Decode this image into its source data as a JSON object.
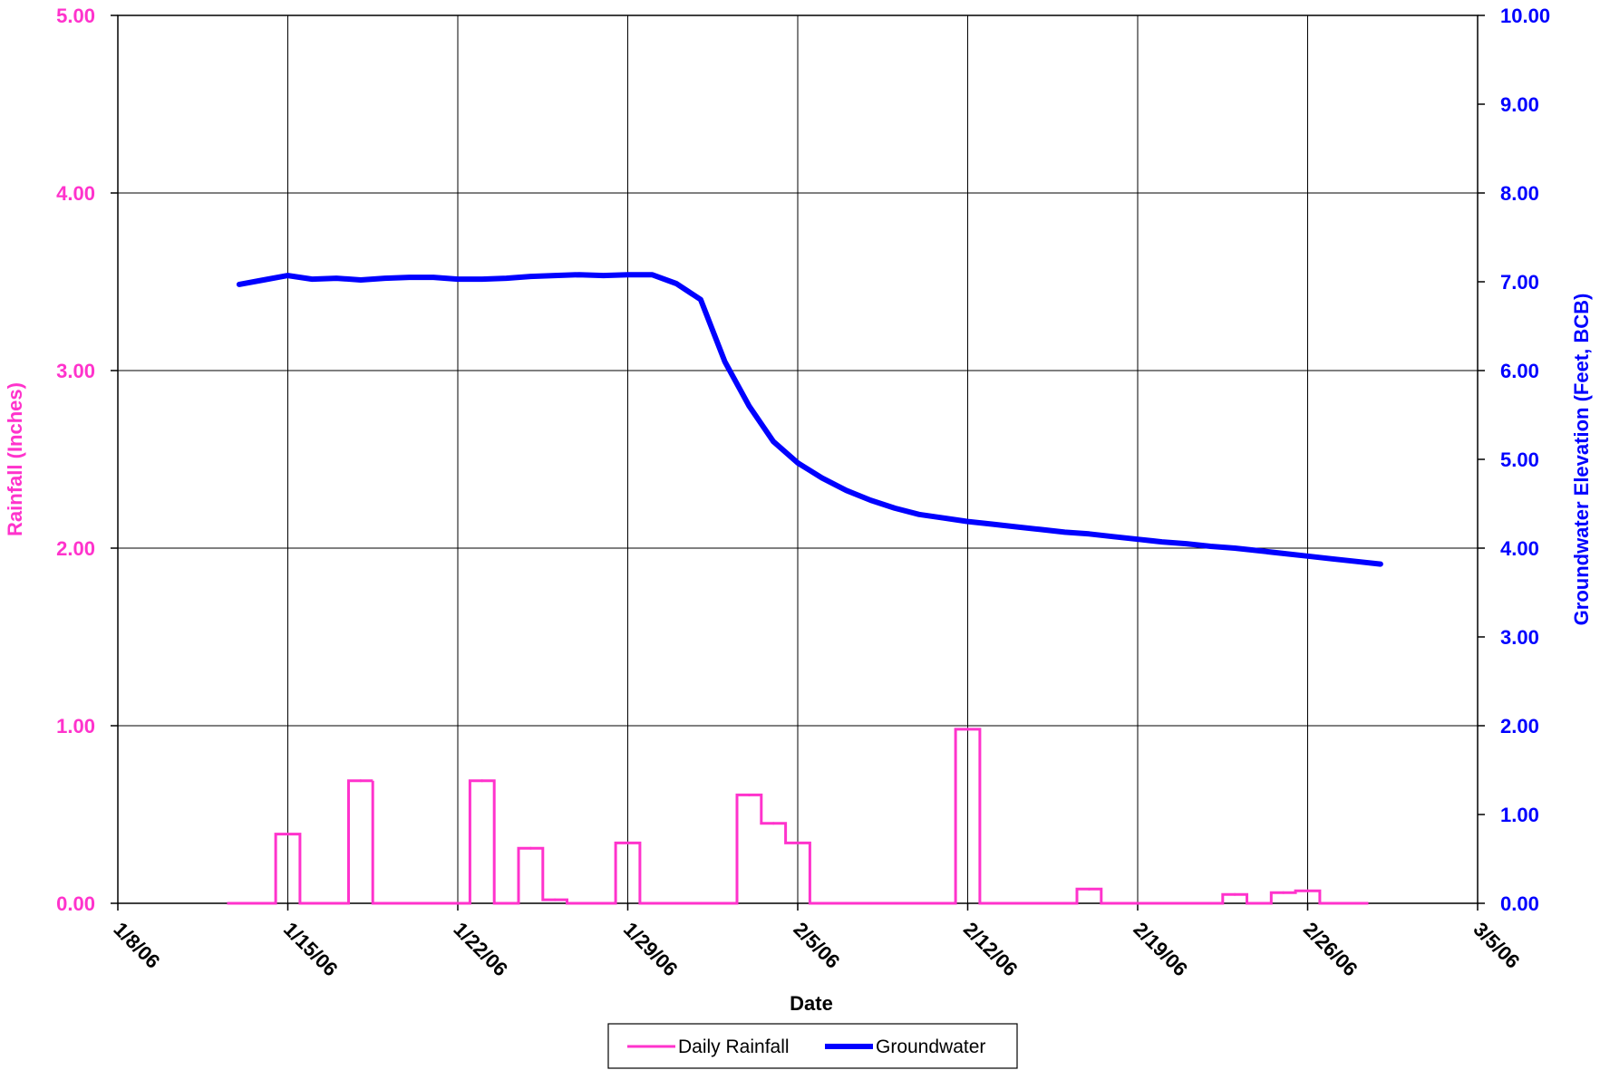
{
  "chart_data": {
    "type": "line",
    "xlabel": "Date",
    "ylabel_left": "Rainfall (Inches)",
    "ylabel_right": "Groundwater Elevation (Feet, BCB)",
    "x_ticks": [
      "1/8/06",
      "1/15/06",
      "1/22/06",
      "1/29/06",
      "2/5/06",
      "2/12/06",
      "2/19/06",
      "2/26/06",
      "3/5/06"
    ],
    "xlim": [
      "1/8/06",
      "3/5/06"
    ],
    "y_left_ticks": [
      "0.00",
      "1.00",
      "2.00",
      "3.00",
      "4.00",
      "5.00"
    ],
    "y_left_range": [
      0,
      5
    ],
    "y_right_ticks": [
      "0.00",
      "1.00",
      "2.00",
      "3.00",
      "4.00",
      "5.00",
      "6.00",
      "7.00",
      "8.00",
      "9.00",
      "10.00"
    ],
    "y_right_range": [
      0,
      10
    ],
    "grid": true,
    "legend_position": "bottom-center",
    "series": [
      {
        "name": "Daily Rainfall",
        "axis": "left",
        "color": "#ff33cc",
        "x": [
          "1/13/06",
          "1/14/06",
          "1/15/06",
          "1/16/06",
          "1/17/06",
          "1/18/06",
          "1/19/06",
          "1/20/06",
          "1/21/06",
          "1/22/06",
          "1/23/06",
          "1/24/06",
          "1/25/06",
          "1/26/06",
          "1/27/06",
          "1/28/06",
          "1/29/06",
          "1/30/06",
          "1/31/06",
          "2/1/06",
          "2/2/06",
          "2/3/06",
          "2/4/06",
          "2/5/06",
          "2/6/06",
          "2/7/06",
          "2/8/06",
          "2/9/06",
          "2/10/06",
          "2/11/06",
          "2/12/06",
          "2/13/06",
          "2/14/06",
          "2/15/06",
          "2/16/06",
          "2/17/06",
          "2/18/06",
          "2/19/06",
          "2/20/06",
          "2/21/06",
          "2/22/06",
          "2/23/06",
          "2/24/06",
          "2/25/06",
          "2/26/06",
          "2/27/06",
          "2/28/06"
        ],
        "y": [
          0,
          0,
          0.39,
          0,
          0,
          0.69,
          0,
          0,
          0,
          0,
          0.69,
          0,
          0.31,
          0.02,
          0,
          0,
          0.34,
          0,
          0,
          0,
          0,
          0.61,
          0.45,
          0.34,
          0,
          0,
          0,
          0,
          0,
          0,
          0.98,
          0,
          0,
          0,
          0,
          0.08,
          0,
          0,
          0,
          0,
          0,
          0.05,
          0,
          0.06,
          0.07,
          0,
          0
        ]
      },
      {
        "name": "Groundwater",
        "axis": "right",
        "color": "#0000ff",
        "x": [
          "1/13/06",
          "1/14/06",
          "1/15/06",
          "1/16/06",
          "1/17/06",
          "1/18/06",
          "1/19/06",
          "1/20/06",
          "1/21/06",
          "1/22/06",
          "1/23/06",
          "1/24/06",
          "1/25/06",
          "1/26/06",
          "1/27/06",
          "1/28/06",
          "1/29/06",
          "1/30/06",
          "1/31/06",
          "2/1/06",
          "2/2/06",
          "2/3/06",
          "2/4/06",
          "2/5/06",
          "2/6/06",
          "2/7/06",
          "2/8/06",
          "2/9/06",
          "2/10/06",
          "2/11/06",
          "2/12/06",
          "2/13/06",
          "2/14/06",
          "2/15/06",
          "2/16/06",
          "2/17/06",
          "2/18/06",
          "2/19/06",
          "2/20/06",
          "2/21/06",
          "2/22/06",
          "2/23/06",
          "2/24/06",
          "2/25/06",
          "2/26/06",
          "2/27/06",
          "2/28/06",
          "3/1/06"
        ],
        "y": [
          6.97,
          7.02,
          7.07,
          7.03,
          7.04,
          7.02,
          7.04,
          7.05,
          7.05,
          7.03,
          7.03,
          7.04,
          7.06,
          7.07,
          7.08,
          7.07,
          7.08,
          7.08,
          6.98,
          6.8,
          6.1,
          5.6,
          5.2,
          4.96,
          4.79,
          4.65,
          4.54,
          4.45,
          4.38,
          4.34,
          4.3,
          4.27,
          4.24,
          4.21,
          4.18,
          4.16,
          4.13,
          4.1,
          4.07,
          4.05,
          4.02,
          4.0,
          3.97,
          3.94,
          3.91,
          3.88,
          3.85,
          3.82
        ]
      }
    ]
  }
}
